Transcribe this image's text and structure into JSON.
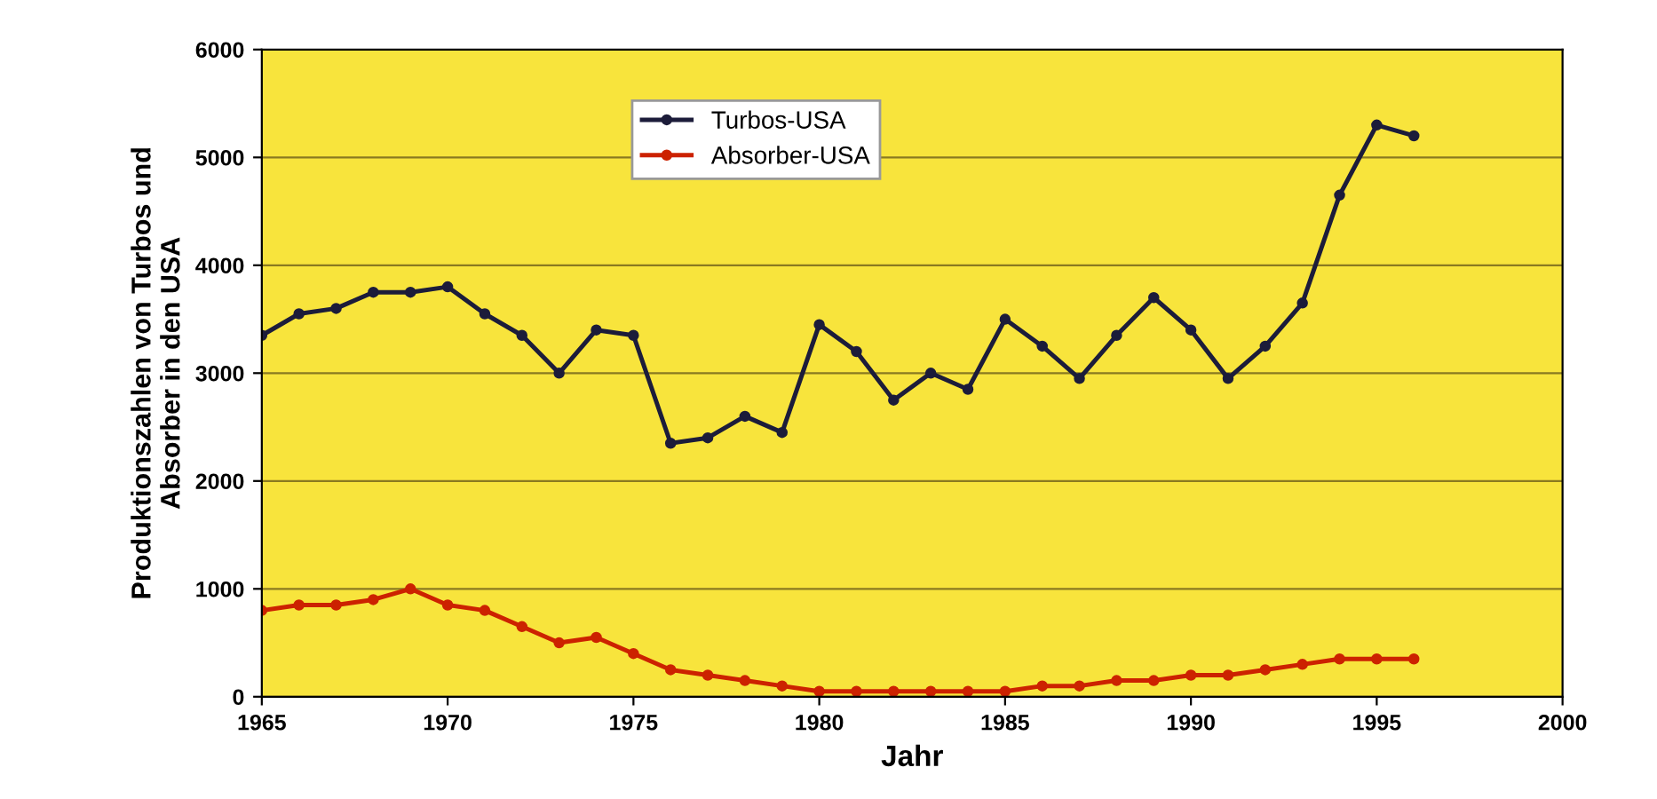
{
  "chart_data": {
    "type": "line",
    "xlabel": "Jahr",
    "ylabel": "Produktionszahlen von Turbos und\nAbsorber in den USA",
    "x": [
      1965,
      1966,
      1967,
      1968,
      1969,
      1970,
      1971,
      1972,
      1973,
      1974,
      1975,
      1976,
      1977,
      1978,
      1979,
      1980,
      1981,
      1982,
      1983,
      1984,
      1985,
      1986,
      1987,
      1988,
      1989,
      1990,
      1991,
      1992,
      1993,
      1994,
      1995,
      1996
    ],
    "series": [
      {
        "name": "Turbos-USA",
        "color": "#1c1c3a",
        "values": [
          3350,
          3550,
          3600,
          3750,
          3750,
          3800,
          3550,
          3350,
          3000,
          3400,
          3350,
          2350,
          2400,
          2600,
          2450,
          3450,
          3200,
          2750,
          3000,
          2850,
          3500,
          3250,
          2950,
          3350,
          3700,
          3400,
          2950,
          3250,
          3650,
          4650,
          5300,
          5200
        ]
      },
      {
        "name": "Absorber-USA",
        "color": "#cc2200",
        "values": [
          800,
          850,
          850,
          900,
          1000,
          850,
          800,
          650,
          500,
          550,
          400,
          250,
          200,
          150,
          100,
          50,
          50,
          50,
          50,
          50,
          50,
          100,
          100,
          150,
          150,
          200,
          200,
          250,
          300,
          350,
          350,
          350
        ]
      }
    ],
    "xlim": [
      1965,
      2000
    ],
    "xticks": [
      1965,
      1970,
      1975,
      1980,
      1985,
      1990,
      1995,
      2000
    ],
    "ylim": [
      0,
      6000
    ],
    "yticks": [
      0,
      1000,
      2000,
      3000,
      4000,
      5000,
      6000
    ],
    "grid": "y",
    "legend": "top",
    "marker": "circle",
    "line_style": "solid"
  }
}
